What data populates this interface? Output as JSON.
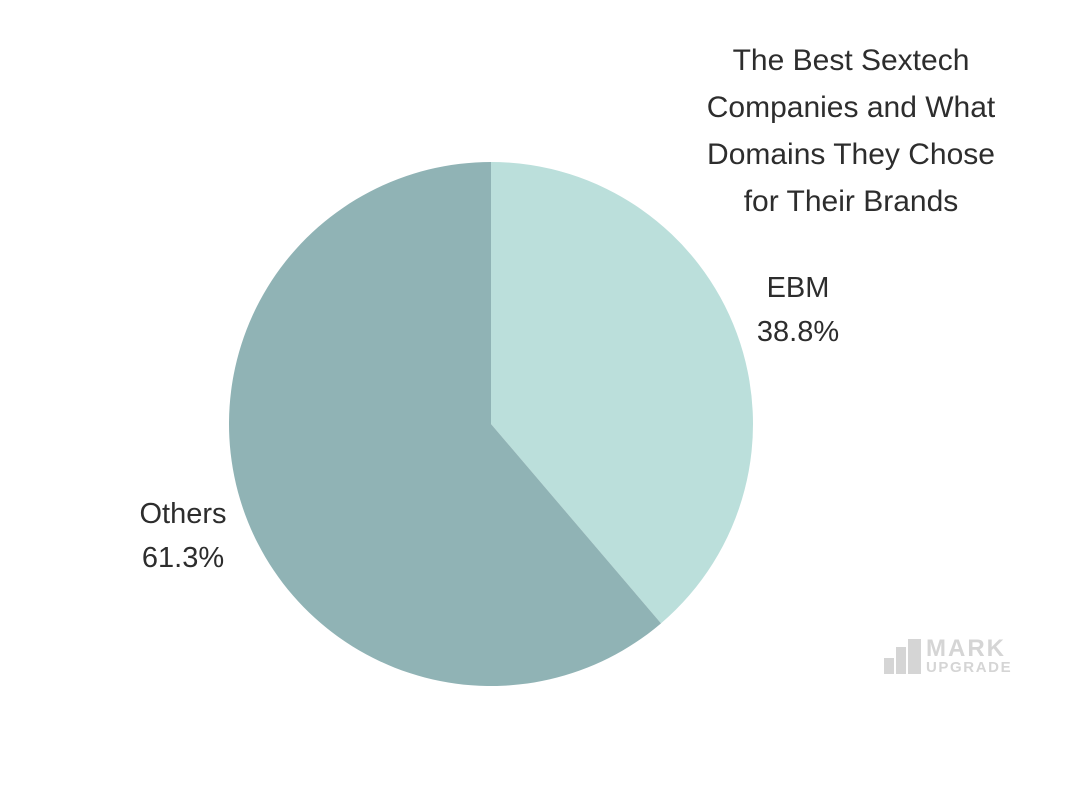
{
  "palette": {
    "background": "#ffffff",
    "text": "#2d2d2d",
    "logo": "#d5d5d5"
  },
  "title_lines": [
    "The Best Sextech",
    "Companies and What",
    "Domains They Chose",
    "for Their Brands"
  ],
  "chart_data": {
    "type": "pie",
    "title": "The Best Sextech Companies and What Domains They Chose for Their Brands",
    "slices": [
      {
        "label": "EBM",
        "value": 38.8,
        "percent_label": "38.8%",
        "color": "#bbdfdb"
      },
      {
        "label": "Others",
        "value": 61.3,
        "percent_label": "61.3%",
        "color": "#90b3b5"
      }
    ],
    "start_angle_deg": 0,
    "direction": "clockwise",
    "labels_position": "outside",
    "legend": "none"
  },
  "logo": {
    "name": "MARK",
    "sub": "UPGRADE",
    "icon": "bar-chart-icon"
  }
}
